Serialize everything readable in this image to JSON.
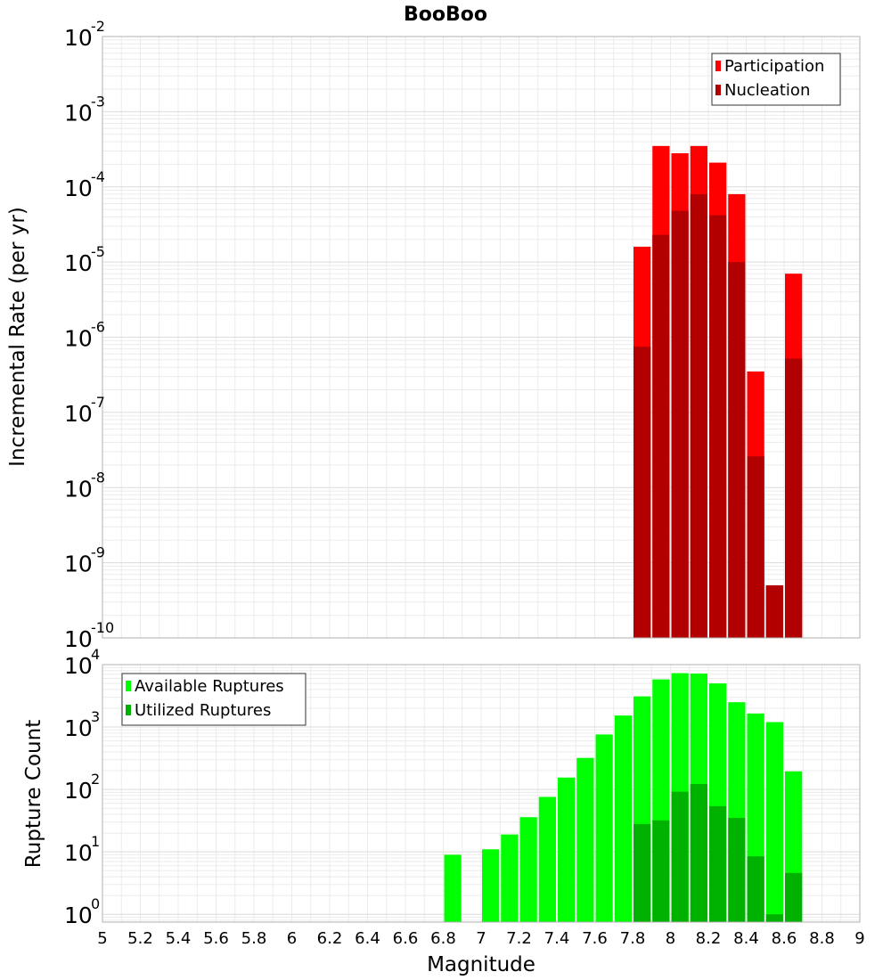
{
  "title": "BooBoo",
  "xlabel": "Magnitude",
  "colors": {
    "participation": "#ff0000",
    "nucleation": "#b20000",
    "available": "#00ff00",
    "utilized": "#00b200",
    "grid": "#ebebeb",
    "frame": "#b0b0b0"
  },
  "x_ticks": [
    "5",
    "5.2",
    "5.4",
    "5.6",
    "5.8",
    "6",
    "6.2",
    "6.4",
    "6.6",
    "6.8",
    "7",
    "7.2",
    "7.4",
    "7.6",
    "7.8",
    "8",
    "8.2",
    "8.4",
    "8.6",
    "8.8",
    "9"
  ],
  "chart_data": [
    {
      "type": "bar",
      "title": "BooBoo",
      "ylabel": "Incremental Rate (per yr)",
      "xlim": [
        5,
        9
      ],
      "ylim": [
        1e-10,
        0.01
      ],
      "y_scale": "log",
      "y_ticks": [
        {
          "base": "10",
          "exp": "-2"
        },
        {
          "base": "10",
          "exp": "-3"
        },
        {
          "base": "10",
          "exp": "-4"
        },
        {
          "base": "10",
          "exp": "-5"
        },
        {
          "base": "10",
          "exp": "-6"
        },
        {
          "base": "10",
          "exp": "-7"
        },
        {
          "base": "10",
          "exp": "-8"
        },
        {
          "base": "10",
          "exp": "-9"
        },
        {
          "base": "10",
          "exp": "-10"
        }
      ],
      "legend_position": "top-right",
      "x": [
        7.85,
        7.95,
        8.05,
        8.15,
        8.25,
        8.35,
        8.45,
        8.55,
        8.65
      ],
      "series": [
        {
          "name": "Participation",
          "color": "#ff0000",
          "values": [
            1.6e-05,
            0.00035,
            0.00028,
            0.00035,
            0.00021,
            8e-05,
            3.5e-07,
            5e-10,
            7e-06
          ]
        },
        {
          "name": "Nucleation",
          "color": "#b20000",
          "values": [
            7.5e-07,
            2.3e-05,
            4.8e-05,
            8e-05,
            4.2e-05,
            1e-05,
            2.6e-08,
            5e-10,
            5.2e-07
          ]
        }
      ]
    },
    {
      "type": "bar",
      "ylabel": "Rupture Count",
      "xlabel": "Magnitude",
      "xlim": [
        5,
        9
      ],
      "ylim": [
        0.75,
        10000
      ],
      "y_scale": "log",
      "y_ticks": [
        {
          "base": "10",
          "exp": "4"
        },
        {
          "base": "10",
          "exp": "3"
        },
        {
          "base": "10",
          "exp": "2"
        },
        {
          "base": "10",
          "exp": "1"
        },
        {
          "base": "10",
          "exp": "0"
        }
      ],
      "legend_position": "top-left",
      "x": [
        6.85,
        7.05,
        7.15,
        7.25,
        7.35,
        7.45,
        7.55,
        7.65,
        7.75,
        7.85,
        7.95,
        8.05,
        8.15,
        8.25,
        8.35,
        8.45,
        8.55,
        8.65
      ],
      "series": [
        {
          "name": "Available Ruptures",
          "color": "#00ff00",
          "values": [
            9,
            11,
            19,
            36,
            76,
            155,
            320,
            760,
            1530,
            3100,
            5800,
            7300,
            7200,
            5000,
            2500,
            1650,
            1200,
            195
          ]
        },
        {
          "name": "Utilized Ruptures",
          "color": "#00b200",
          "values": [
            0,
            0,
            0,
            0,
            0,
            0,
            0,
            0,
            0,
            28,
            32,
            92,
            122,
            54,
            35,
            8.5,
            1.0,
            4.6
          ]
        }
      ]
    }
  ]
}
